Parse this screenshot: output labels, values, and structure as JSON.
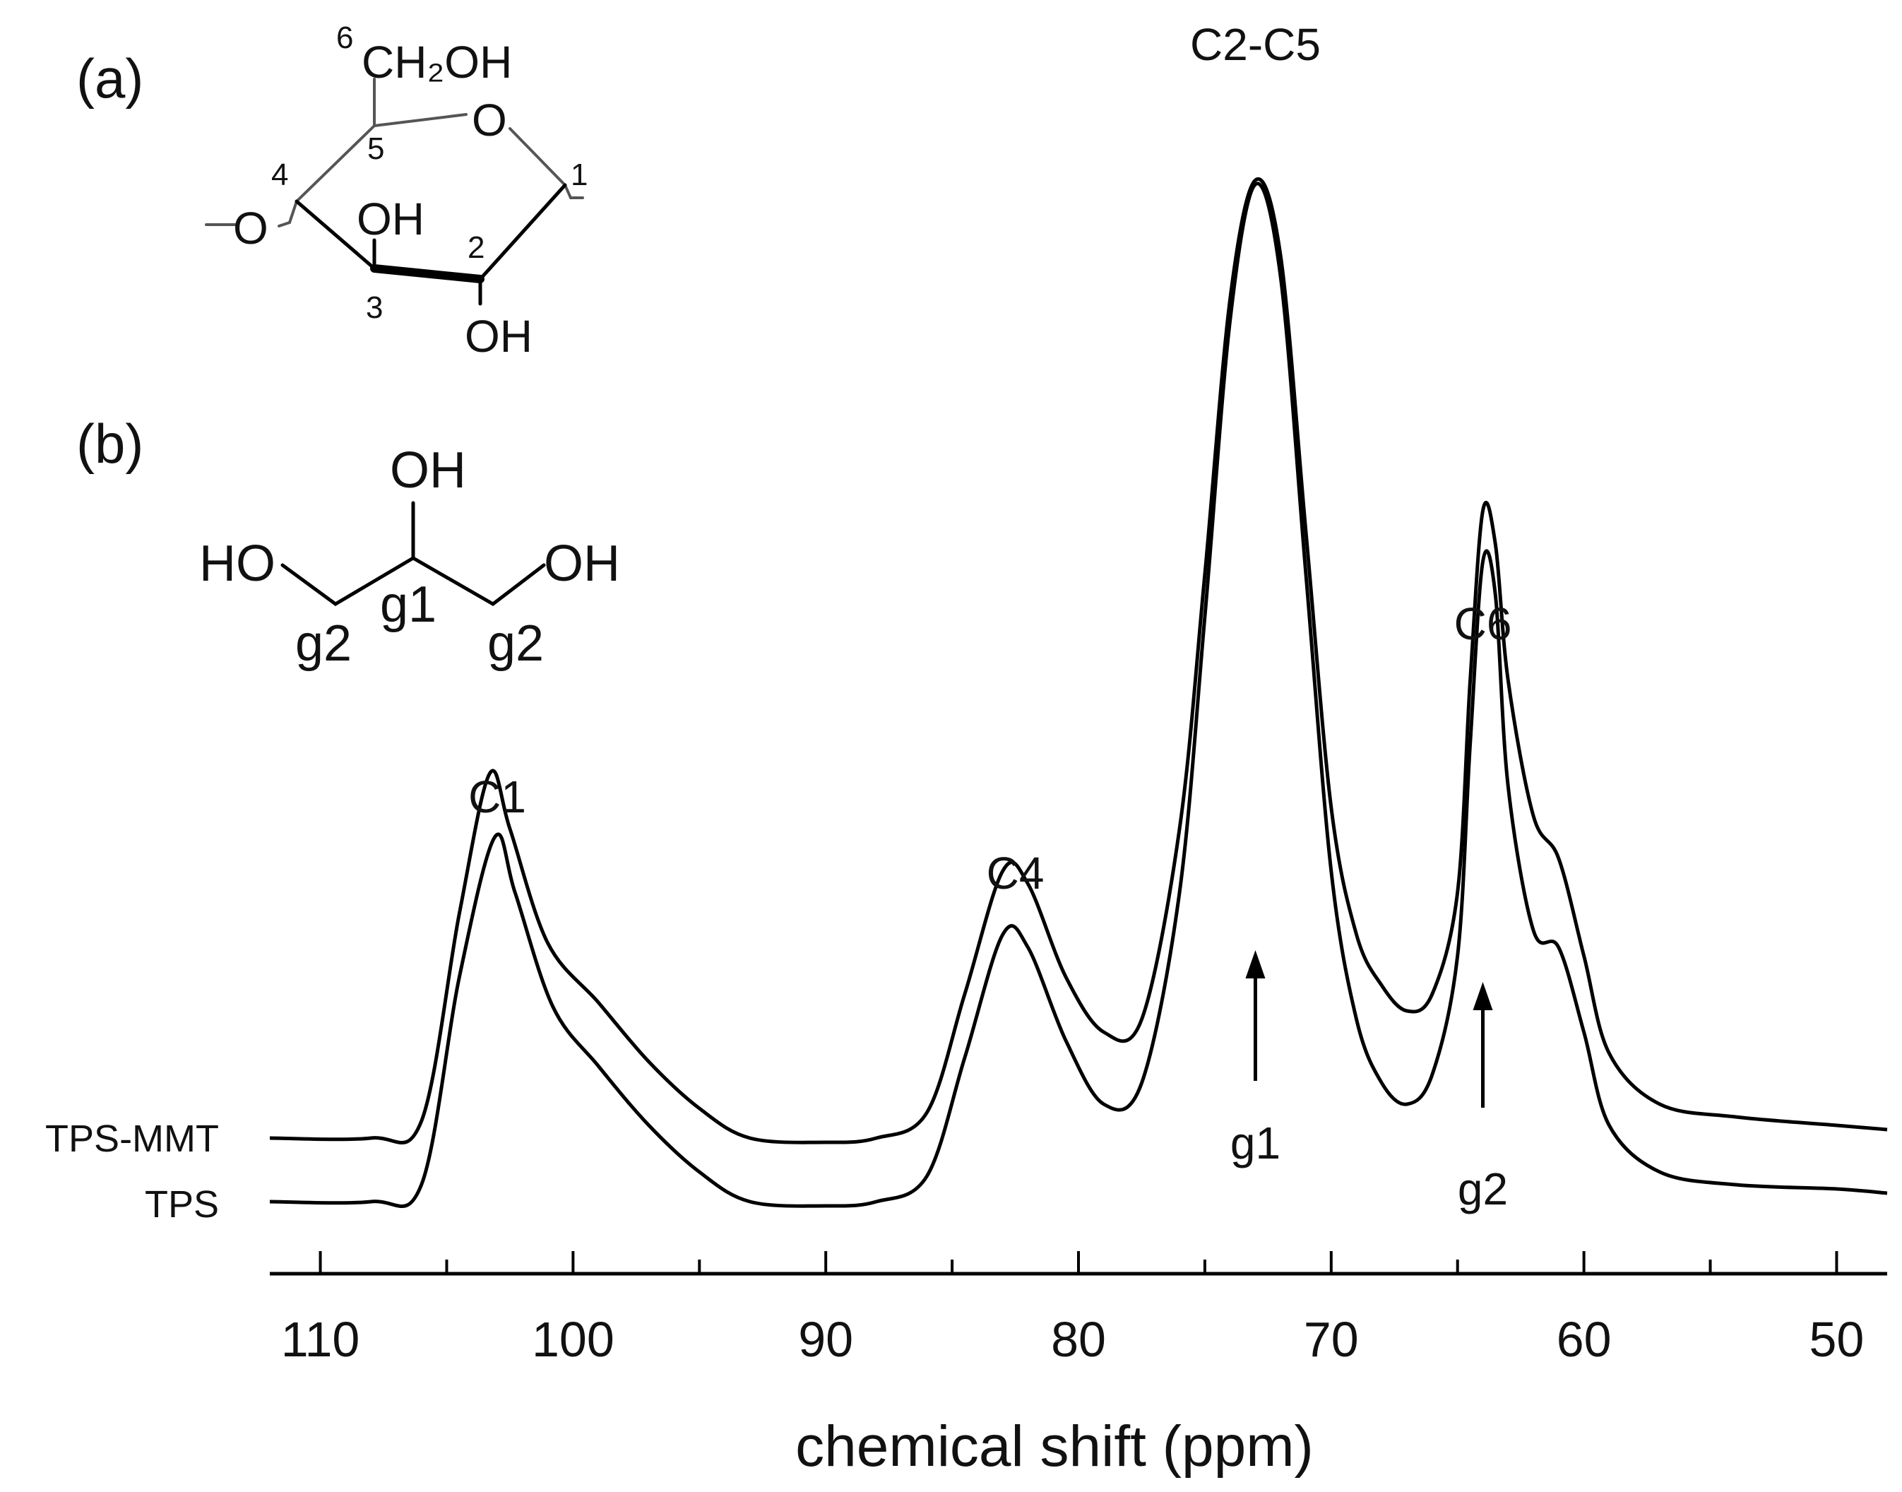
{
  "chart_data": {
    "type": "line",
    "title": "",
    "xlabel": "chemical shift (ppm)",
    "ylabel": "",
    "xlim": [
      112,
      48
    ],
    "x_reversed": true,
    "x_ticks": [
      110,
      100,
      90,
      80,
      70,
      60,
      50
    ],
    "x_minor_step": 5,
    "grid": false,
    "series": [
      {
        "name": "TPS-MMT",
        "values": [
          [
            112,
            0.02
          ],
          [
            108,
            0.02
          ],
          [
            106,
            0.06
          ],
          [
            104.5,
            0.55
          ],
          [
            103.3,
            0.88
          ],
          [
            102.5,
            0.75
          ],
          [
            101,
            0.48
          ],
          [
            99,
            0.34
          ],
          [
            97,
            0.2
          ],
          [
            95,
            0.09
          ],
          [
            93,
            0.02
          ],
          [
            90,
            0.01
          ],
          [
            88,
            0.02
          ],
          [
            86,
            0.08
          ],
          [
            84.5,
            0.36
          ],
          [
            83,
            0.65
          ],
          [
            82,
            0.62
          ],
          [
            80.5,
            0.4
          ],
          [
            79,
            0.27
          ],
          [
            77.5,
            0.3
          ],
          [
            76,
            0.75
          ],
          [
            75,
            1.35
          ],
          [
            74,
            2.0
          ],
          [
            73,
            2.28
          ],
          [
            72,
            2.1
          ],
          [
            71,
            1.45
          ],
          [
            70,
            0.8
          ],
          [
            69,
            0.5
          ],
          [
            68,
            0.38
          ],
          [
            67,
            0.32
          ],
          [
            66,
            0.36
          ],
          [
            65,
            0.6
          ],
          [
            64.5,
            1.1
          ],
          [
            64,
            1.5
          ],
          [
            63.5,
            1.42
          ],
          [
            63,
            1.1
          ],
          [
            62,
            0.78
          ],
          [
            61,
            0.68
          ],
          [
            60,
            0.45
          ],
          [
            59,
            0.22
          ],
          [
            57,
            0.1
          ],
          [
            54,
            0.07
          ],
          [
            50,
            0.05
          ],
          [
            48,
            0.04
          ]
        ]
      },
      {
        "name": "TPS",
        "values": [
          [
            112,
            0.02
          ],
          [
            108,
            0.02
          ],
          [
            106,
            0.06
          ],
          [
            104.5,
            0.55
          ],
          [
            103.1,
            0.88
          ],
          [
            102.3,
            0.75
          ],
          [
            100.8,
            0.48
          ],
          [
            99,
            0.34
          ],
          [
            97,
            0.2
          ],
          [
            95,
            0.09
          ],
          [
            93,
            0.02
          ],
          [
            90,
            0.01
          ],
          [
            88,
            0.02
          ],
          [
            86,
            0.08
          ],
          [
            84.5,
            0.36
          ],
          [
            83,
            0.65
          ],
          [
            82,
            0.62
          ],
          [
            80.5,
            0.4
          ],
          [
            79,
            0.25
          ],
          [
            77.5,
            0.3
          ],
          [
            76,
            0.75
          ],
          [
            75,
            1.4
          ],
          [
            74,
            2.1
          ],
          [
            73,
            2.42
          ],
          [
            72,
            2.2
          ],
          [
            71,
            1.5
          ],
          [
            70,
            0.8
          ],
          [
            69,
            0.45
          ],
          [
            68,
            0.3
          ],
          [
            67,
            0.25
          ],
          [
            66,
            0.32
          ],
          [
            65,
            0.6
          ],
          [
            64.5,
            1.1
          ],
          [
            64,
            1.53
          ],
          [
            63.5,
            1.45
          ],
          [
            63,
            1.0
          ],
          [
            62,
            0.66
          ],
          [
            61,
            0.62
          ],
          [
            60,
            0.42
          ],
          [
            59,
            0.2
          ],
          [
            57,
            0.09
          ],
          [
            54,
            0.06
          ],
          [
            50,
            0.05
          ],
          [
            48,
            0.04
          ]
        ]
      }
    ],
    "peak_labels": [
      {
        "text": "C1",
        "x": 103
      },
      {
        "text": "C4",
        "x": 82.5
      },
      {
        "text": "C2-C5",
        "x": 73
      },
      {
        "text": "C6",
        "x": 64
      }
    ],
    "arrows": [
      {
        "text": "g1",
        "x": 73
      },
      {
        "text": "g2",
        "x": 64
      }
    ]
  },
  "panels": {
    "a_label": "(a)",
    "b_label": "(b)"
  },
  "glucose": {
    "c6_num": "6",
    "ch2oh": "CH₂OH",
    "ring_o": "O",
    "c5_num": "5",
    "c4_num": "4",
    "c1_num": "1",
    "o_link": "O",
    "oh3": "OH",
    "c3_num": "3",
    "c2_num": "2",
    "oh2": "OH"
  },
  "glycerol": {
    "oh_top": "OH",
    "ho_left": "HO",
    "oh_right": "OH",
    "g2_left": "g2",
    "g1": "g1",
    "g2_right": "g2"
  }
}
